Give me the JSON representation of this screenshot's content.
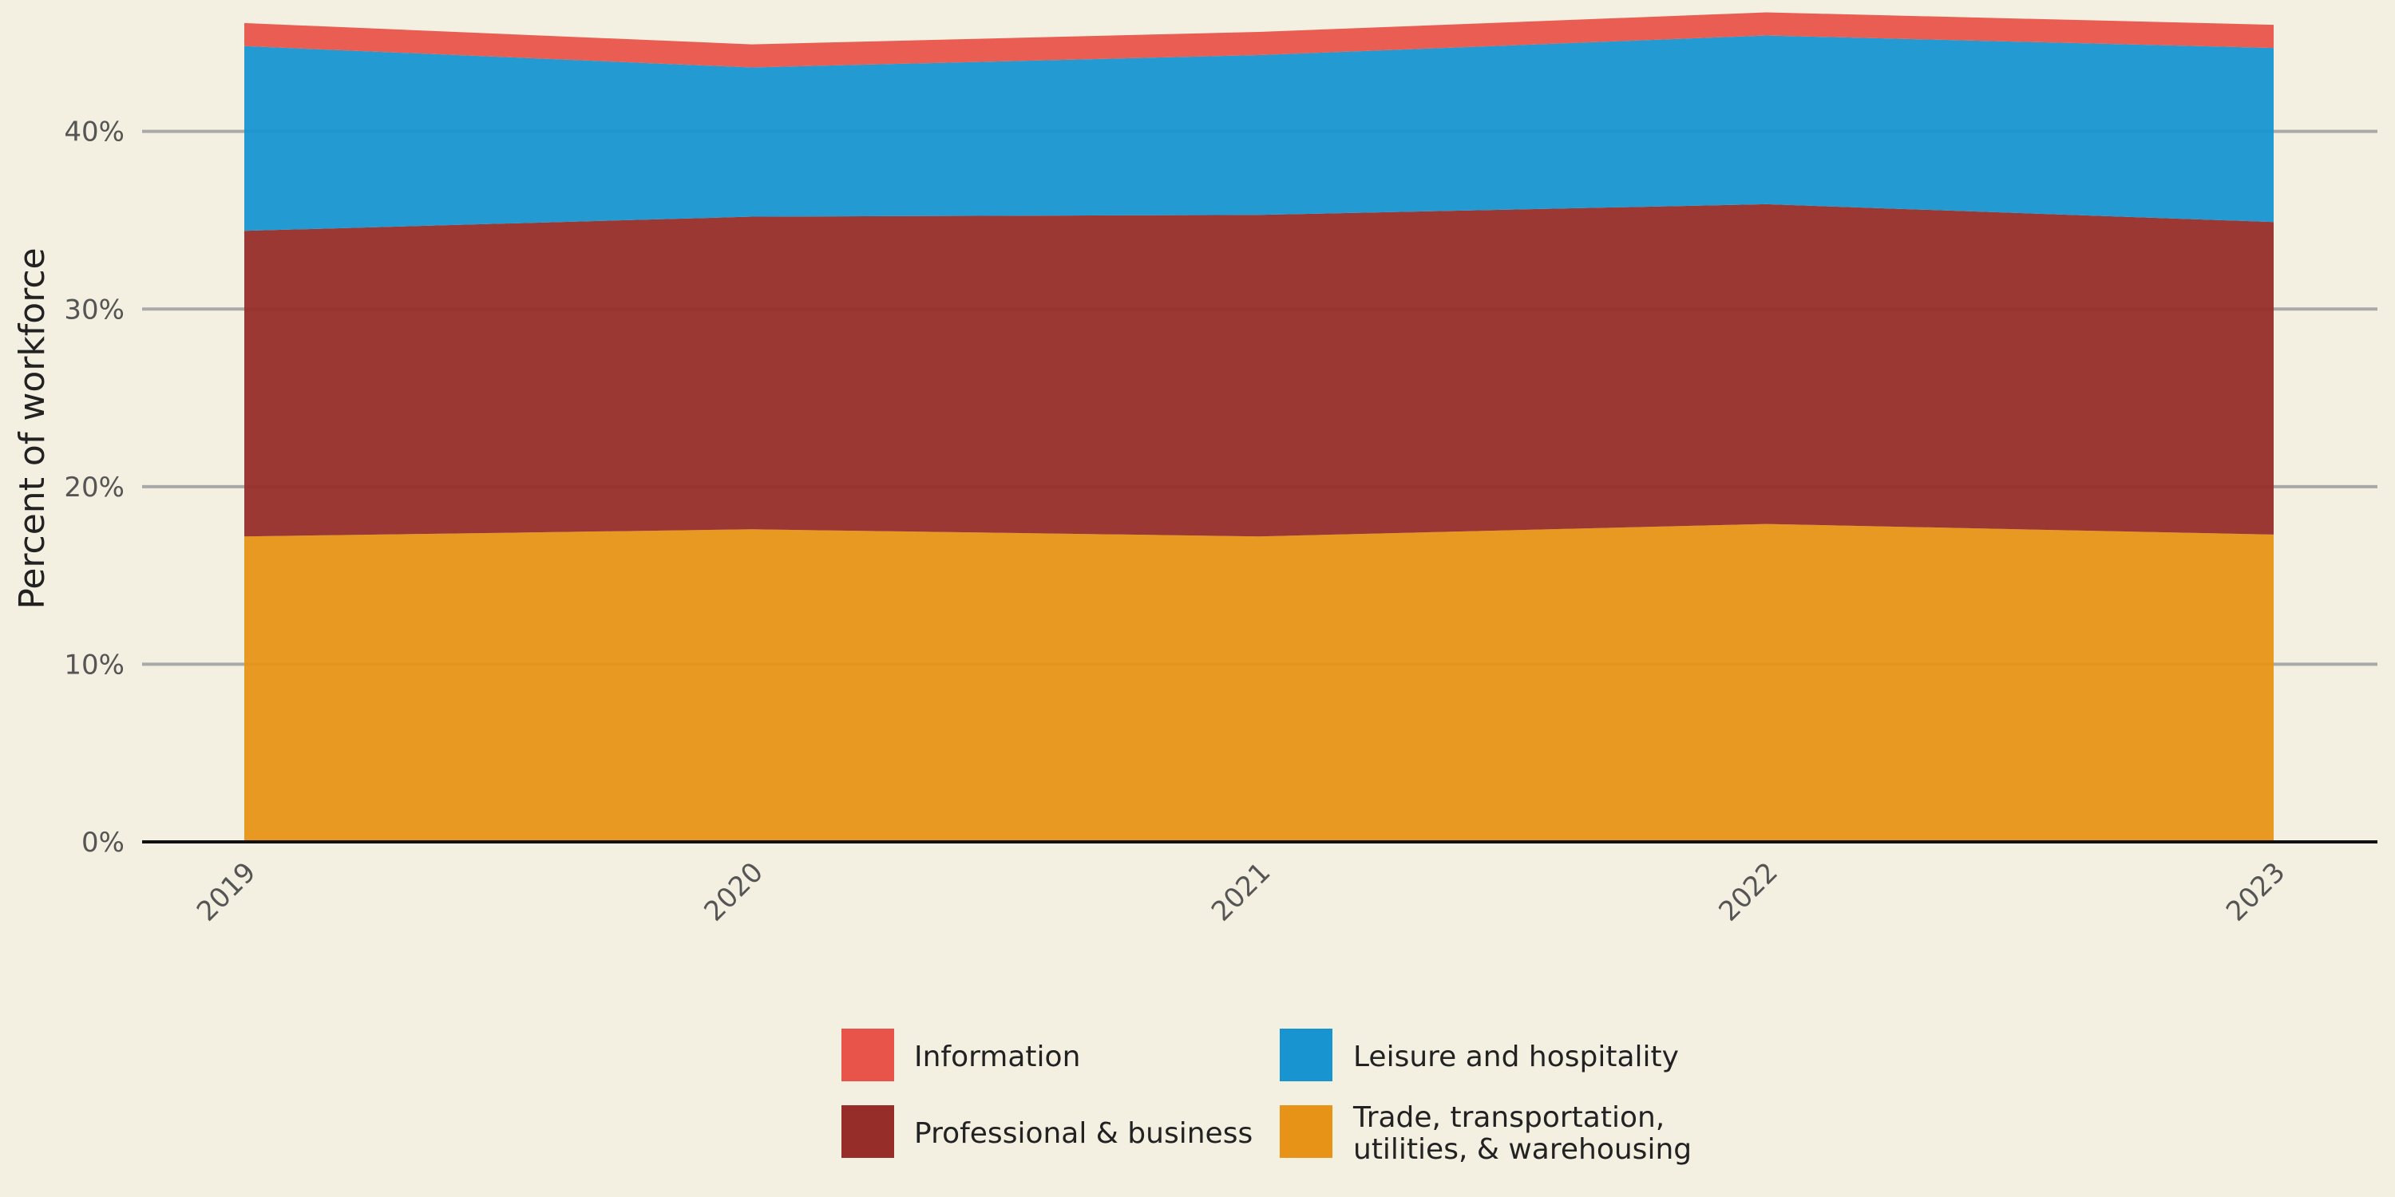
{
  "chart_data": {
    "type": "area",
    "stacked": true,
    "x": [
      "2019",
      "2020",
      "2021",
      "2022",
      "2023"
    ],
    "ylabel": "Percent of workforce",
    "ylim": [
      0,
      46.5
    ],
    "yticks": [
      0,
      10,
      20,
      30,
      40
    ],
    "ytick_labels": [
      "0%",
      "10%",
      "20%",
      "30%",
      "40%"
    ],
    "grid": "horizontal",
    "legend_position": "bottom-center",
    "series": [
      {
        "name": "Trade, transportation,\nutilities, & warehousing",
        "name_lines": [
          "Trade, transportation,",
          "utilities, & warehousing"
        ],
        "color": "#e69317",
        "values": [
          17.2,
          17.6,
          17.2,
          17.9,
          17.3
        ]
      },
      {
        "name": "Professional & business",
        "name_lines": [
          "Professional & business"
        ],
        "color": "#962d29",
        "values": [
          17.2,
          17.6,
          18.1,
          18.0,
          17.6
        ]
      },
      {
        "name": "Leisure and hospitality",
        "name_lines": [
          "Leisure and hospitality"
        ],
        "color": "#1895d1",
        "values": [
          10.4,
          8.4,
          9.0,
          9.5,
          9.8
        ]
      },
      {
        "name": "Information",
        "name_lines": [
          "Information"
        ],
        "color": "#e8544a",
        "values": [
          1.3,
          1.3,
          1.3,
          1.3,
          1.3
        ]
      }
    ],
    "legend_order": [
      "Information",
      "Leisure and hospitality",
      "Professional & business",
      "Trade, transportation,\nutilities, & warehousing"
    ]
  }
}
